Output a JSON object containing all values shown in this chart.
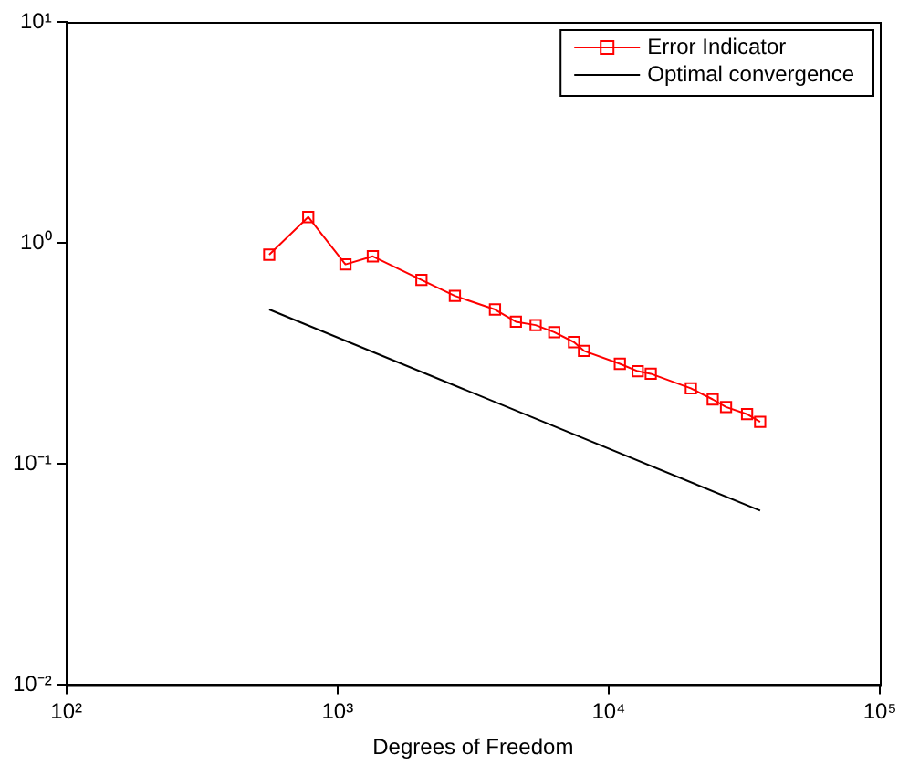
{
  "chart_data": {
    "type": "line",
    "xlabel": "Degrees of Freedom",
    "log": "xy",
    "xlim": [
      100,
      100000
    ],
    "ylim": [
      0.01,
      10
    ],
    "xticks": [
      {
        "value": 100,
        "label": "10²"
      },
      {
        "value": 1000,
        "label": "10³"
      },
      {
        "value": 10000,
        "label": "10⁴"
      },
      {
        "value": 100000,
        "label": "10⁵"
      }
    ],
    "yticks": [
      {
        "value": 0.01,
        "label": "10⁻²"
      },
      {
        "value": 0.1,
        "label": "10⁻¹"
      },
      {
        "value": 1,
        "label": "10⁰"
      },
      {
        "value": 10,
        "label": "10¹"
      }
    ],
    "grid": false,
    "legend": "top right",
    "line_style": "solid",
    "series": [
      {
        "name": "Error Indicator",
        "color": "#ff0000",
        "marker": "square",
        "x": [
          560,
          780,
          1070,
          1350,
          2040,
          2710,
          3810,
          4550,
          5380,
          6300,
          7450,
          8110,
          11000,
          12800,
          14300,
          20100,
          24200,
          27100,
          32400,
          36200
        ],
        "values": [
          0.885,
          1.31,
          0.8,
          0.87,
          0.68,
          0.576,
          0.5,
          0.44,
          0.425,
          0.395,
          0.356,
          0.325,
          0.284,
          0.263,
          0.256,
          0.22,
          0.196,
          0.181,
          0.168,
          0.155
        ]
      },
      {
        "name": "Optimal convergence",
        "color": "#000000",
        "marker": "none",
        "x": [
          560,
          36200
        ],
        "values": [
          0.5,
          0.0615
        ]
      }
    ]
  }
}
